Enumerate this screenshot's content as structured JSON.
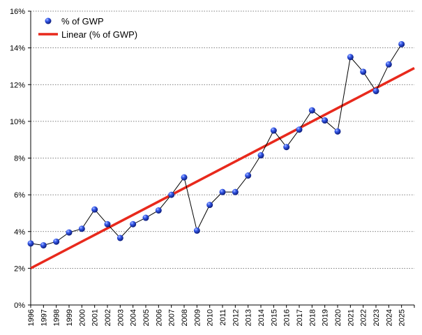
{
  "colors": {
    "series_marker": "#1f3fd6",
    "series_line": "#000000",
    "trend_line": "#e8291c",
    "grid": "#555555"
  },
  "legend": {
    "series_label": "% of GWP",
    "trend_label": "Linear (% of GWP)",
    "placement": "top-left"
  },
  "chart_data": {
    "type": "line",
    "x": [
      1996,
      1997,
      1998,
      1999,
      2000,
      2001,
      2002,
      2003,
      2004,
      2005,
      2006,
      2007,
      2008,
      2009,
      2010,
      2011,
      2012,
      2013,
      2014,
      2015,
      2016,
      2017,
      2018,
      2019,
      2020,
      2021,
      2022,
      2023,
      2024,
      2025
    ],
    "series": [
      {
        "name": "% of GWP",
        "values": [
          3.35,
          3.25,
          3.45,
          3.95,
          4.15,
          5.2,
          4.4,
          3.65,
          4.4,
          4.75,
          5.15,
          6.0,
          6.95,
          4.05,
          5.45,
          6.15,
          6.15,
          7.05,
          8.15,
          9.5,
          8.6,
          9.55,
          10.6,
          10.05,
          9.45,
          13.5,
          12.7,
          11.65,
          13.1,
          14.2
        ]
      },
      {
        "name": "Linear (% of GWP)",
        "trend": "linear",
        "x": [
          1996,
          2026
        ],
        "values": [
          2.0,
          12.9
        ]
      }
    ],
    "y_ticks": [
      "0%",
      "2%",
      "4%",
      "6%",
      "8%",
      "10%",
      "12%",
      "14%",
      "16%"
    ],
    "ylim": [
      0,
      16
    ],
    "xlim": [
      1996,
      2026
    ],
    "grid": "horizontal dotted",
    "title": "",
    "xlabel": "",
    "ylabel": ""
  }
}
